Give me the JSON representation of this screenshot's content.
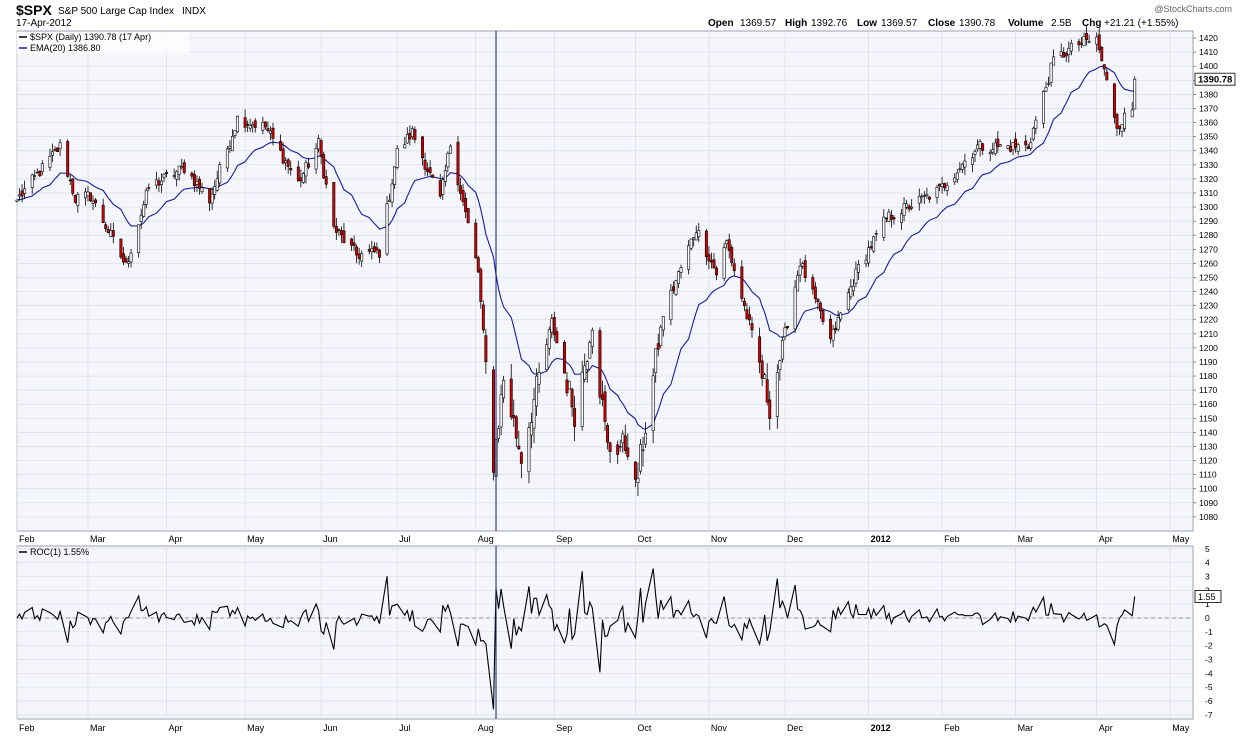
{
  "header": {
    "symbol": "$SPX",
    "name": "S&P 500 Large Cap Index",
    "exchange": "INDX",
    "date": "17-Apr-2012",
    "watermark": "@StockCharts.com",
    "quote": {
      "open_label": "Open",
      "open": "1369.57",
      "high_label": "High",
      "high": "1392.76",
      "low_label": "Low",
      "low": "1369.57",
      "close_label": "Close",
      "close": "1390.78",
      "volume_label": "Volume",
      "volume": "2.5B",
      "chg_label": "Chg",
      "chg": "+21.21 (+1.55%)"
    }
  },
  "colors": {
    "background": "#ffffff",
    "panel_bg": "#f4f6fb",
    "grid": "#d8dde8",
    "frame": "#9aa3b3",
    "up_candle": "#ffffff",
    "down_candle": "#d60000",
    "candle_outline": "#000000",
    "ema": "#1c1c9e",
    "roc_line": "#000000",
    "cursor_line": "#0a1a8c",
    "zero_line": "#7f7f7f"
  },
  "chart_data": [
    {
      "type": "candlestick",
      "title": "$SPX S&P 500 Large Cap Index INDX",
      "legend": [
        {
          "label": "$SPX (Daily) 1390.78 (17 Apr)"
        },
        {
          "label": "EMA(20) 1386.80"
        }
      ],
      "last_value_label": "1390.78",
      "y_axis": {
        "ylim": [
          1070,
          1425
        ],
        "ticks": [
          1080,
          1090,
          1100,
          1110,
          1120,
          1130,
          1140,
          1150,
          1160,
          1170,
          1180,
          1190,
          1200,
          1210,
          1220,
          1230,
          1240,
          1250,
          1260,
          1270,
          1280,
          1290,
          1300,
          1310,
          1320,
          1330,
          1340,
          1350,
          1360,
          1370,
          1380,
          1390,
          1400,
          1410,
          1420
        ],
        "position": "right"
      },
      "x_axis": {
        "start": "2011-02-01",
        "end": "2012-05-10",
        "labels": [
          {
            "date": "2011-02-01",
            "label": "Feb"
          },
          {
            "date": "2011-03-01",
            "label": "Mar"
          },
          {
            "date": "2011-04-01",
            "label": "Apr"
          },
          {
            "date": "2011-05-02",
            "label": "May"
          },
          {
            "date": "2011-06-01",
            "label": "Jun"
          },
          {
            "date": "2011-07-01",
            "label": "Jul"
          },
          {
            "date": "2011-08-01",
            "label": "Aug"
          },
          {
            "date": "2011-09-01",
            "label": "Sep"
          },
          {
            "date": "2011-10-03",
            "label": "Oct"
          },
          {
            "date": "2011-11-01",
            "label": "Nov"
          },
          {
            "date": "2011-12-01",
            "label": "Dec"
          },
          {
            "date": "2012-01-03",
            "label": "2012"
          },
          {
            "date": "2012-02-01",
            "label": "Feb"
          },
          {
            "date": "2012-03-01",
            "label": "Mar"
          },
          {
            "date": "2012-04-02",
            "label": "Apr"
          },
          {
            "date": "2012-05-01",
            "label": "May"
          }
        ]
      },
      "close_anchors": [
        [
          "2011-02-01",
          1305
        ],
        [
          "2011-02-18",
          1343
        ],
        [
          "2011-02-24",
          1306
        ],
        [
          "2011-03-02",
          1308
        ],
        [
          "2011-03-16",
          1258
        ],
        [
          "2011-03-25",
          1314
        ],
        [
          "2011-04-08",
          1328
        ],
        [
          "2011-04-18",
          1305
        ],
        [
          "2011-04-29",
          1363
        ],
        [
          "2011-05-02",
          1361
        ],
        [
          "2011-05-10",
          1357
        ],
        [
          "2011-05-23",
          1317
        ],
        [
          "2011-05-31",
          1345
        ],
        [
          "2011-06-06",
          1285
        ],
        [
          "2011-06-15",
          1266
        ],
        [
          "2011-06-24",
          1268
        ],
        [
          "2011-07-01",
          1339
        ],
        [
          "2011-07-07",
          1353
        ],
        [
          "2011-07-18",
          1305
        ],
        [
          "2011-07-22",
          1345
        ],
        [
          "2011-08-02",
          1254
        ],
        [
          "2011-08-08",
          1119
        ],
        [
          "2011-08-12",
          1178
        ],
        [
          "2011-08-19",
          1123
        ],
        [
          "2011-08-31",
          1218
        ],
        [
          "2011-09-09",
          1154
        ],
        [
          "2011-09-16",
          1216
        ],
        [
          "2011-09-22",
          1129
        ],
        [
          "2011-09-30",
          1131
        ],
        [
          "2011-10-03",
          1099
        ],
        [
          "2011-10-14",
          1224
        ],
        [
          "2011-10-27",
          1285
        ],
        [
          "2011-11-04",
          1253
        ],
        [
          "2011-11-08",
          1275
        ],
        [
          "2011-11-17",
          1216
        ],
        [
          "2011-11-25",
          1159
        ],
        [
          "2011-12-07",
          1261
        ],
        [
          "2011-12-19",
          1205
        ],
        [
          "2011-12-30",
          1257
        ],
        [
          "2012-01-10",
          1292
        ],
        [
          "2012-01-31",
          1312
        ],
        [
          "2012-02-15",
          1343
        ],
        [
          "2012-03-06",
          1343
        ],
        [
          "2012-03-16",
          1404
        ],
        [
          "2012-03-26",
          1416
        ],
        [
          "2012-04-02",
          1419
        ],
        [
          "2012-04-10",
          1358
        ],
        [
          "2012-04-16",
          1369
        ],
        [
          "2012-04-17",
          1390.78
        ]
      ],
      "last_candle": {
        "date": "2012-04-17",
        "open": 1369.57,
        "high": 1392.76,
        "low": 1369.57,
        "close": 1390.78
      },
      "ema_period": 20,
      "ema_last": 1386.8,
      "cursor_date": "2011-08-09"
    },
    {
      "type": "line",
      "title": "ROC(1) 1.55%",
      "series": [
        {
          "name": "ROC(1)",
          "last": 1.55
        }
      ],
      "last_value_label": "1.55",
      "y_axis": {
        "ylim": [
          -7.3,
          5.2
        ],
        "ticks": [
          5,
          4,
          3,
          2,
          1,
          0,
          -1,
          -2,
          -3,
          -4,
          -5,
          -6,
          -7
        ],
        "position": "right"
      },
      "zero_line": true
    }
  ]
}
